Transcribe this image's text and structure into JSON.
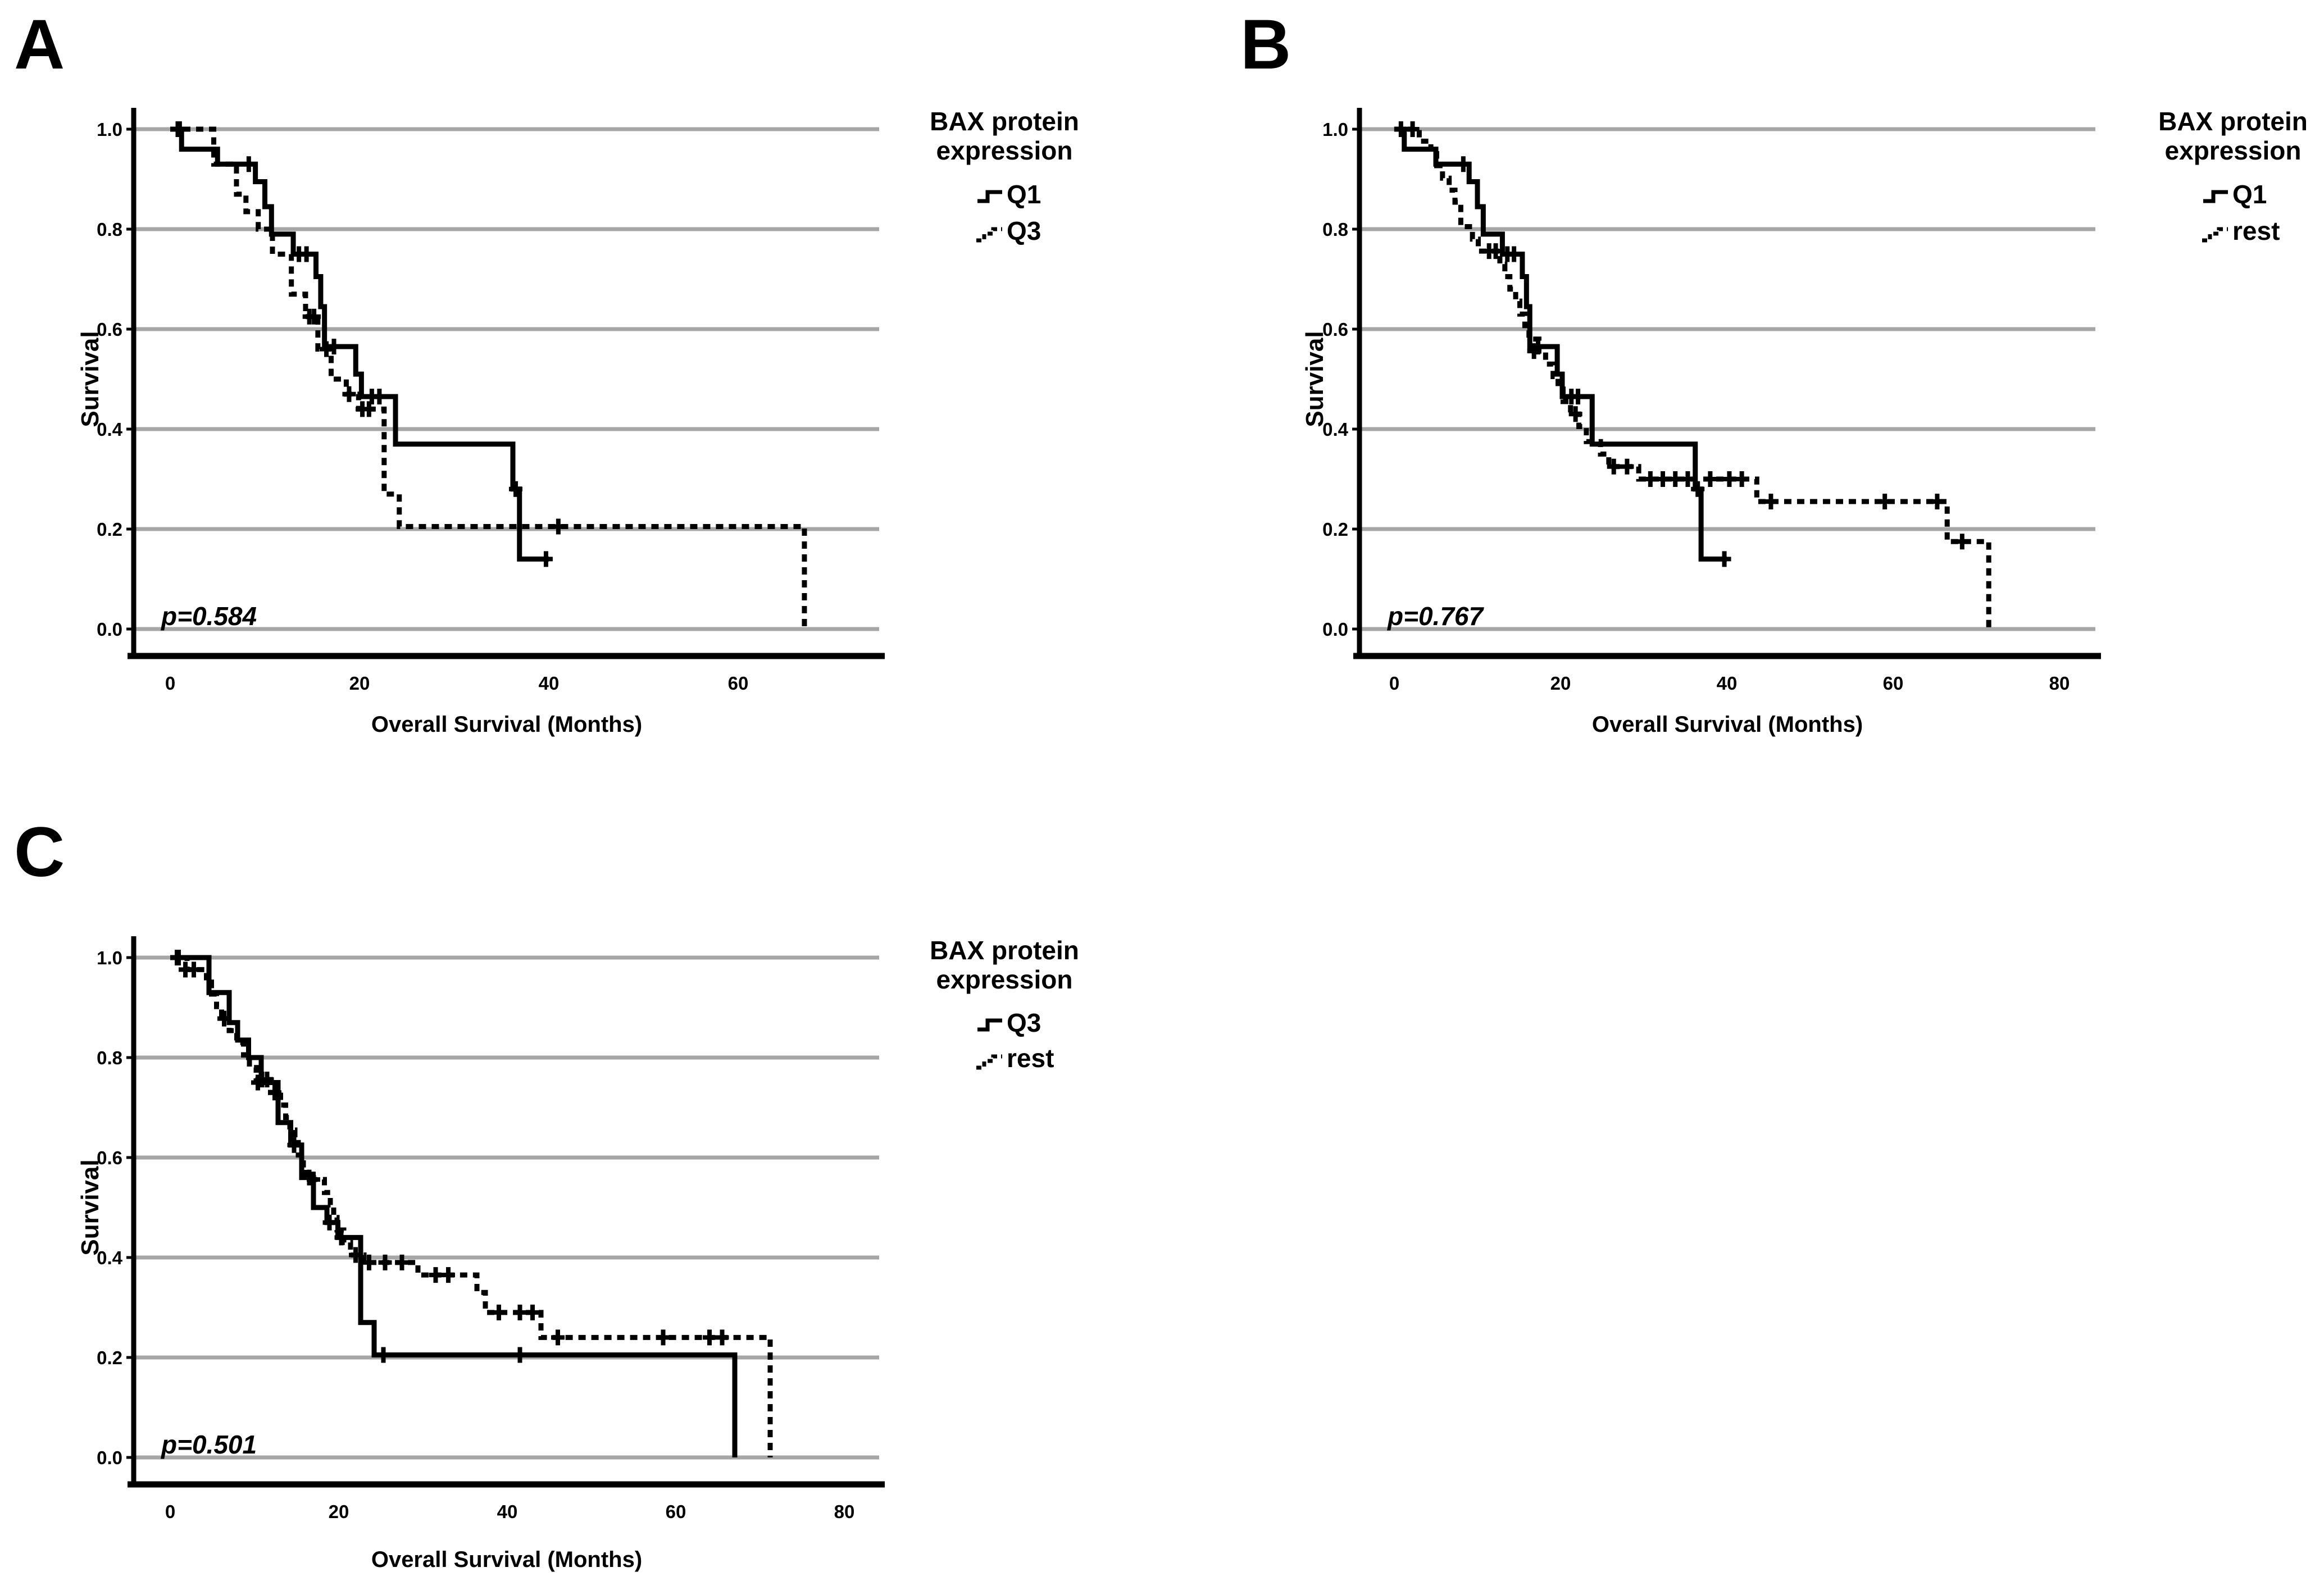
{
  "figure": {
    "background": "#ffffff",
    "curve_color": "#000000",
    "grid_color": "#a6a6a6",
    "description": "Kaplan-Meier overall survival curves by BAX protein expression group"
  },
  "chart_data": [
    {
      "type": "line",
      "panel_label": "A",
      "xlabel": "Overall Survival (Months)",
      "ylabel": "Survival",
      "p_value": "p=0.584",
      "x_ticks": [
        0,
        20,
        40,
        60
      ],
      "y_ticks": [
        "1.0",
        "0.8",
        "0.6",
        "0.4",
        "0.2",
        "0.0"
      ],
      "xlim": [
        0,
        74
      ],
      "ylim": [
        0.0,
        1.0
      ],
      "grid": "horizontal",
      "legend": {
        "title_lines": [
          "BAX protein",
          "expression"
        ],
        "position": "right",
        "items": [
          {
            "label": "Q1",
            "style": "solid"
          },
          {
            "label": "Q3",
            "style": "dashed"
          }
        ]
      },
      "series": [
        {
          "name": "Q1",
          "style": "solid",
          "steps": [
            [
              0,
              1.0
            ],
            [
              1.2,
              0.96
            ],
            [
              5,
              0.93
            ],
            [
              9,
              0.895
            ],
            [
              10,
              0.845
            ],
            [
              10.7,
              0.79
            ],
            [
              13,
              0.75
            ],
            [
              15.4,
              0.705
            ],
            [
              15.9,
              0.645
            ],
            [
              16.3,
              0.565
            ],
            [
              19.6,
              0.51
            ],
            [
              20.2,
              0.465
            ],
            [
              23.8,
              0.37
            ],
            [
              36.2,
              0.28
            ],
            [
              36.9,
              0.14
            ],
            [
              40,
              0.14
            ]
          ],
          "censors": [
            [
              0.8,
              1.0
            ],
            [
              8.3,
              0.93
            ],
            [
              13.6,
              0.75
            ],
            [
              14.4,
              0.75
            ],
            [
              17.3,
              0.565
            ],
            [
              21.3,
              0.465
            ],
            [
              22.1,
              0.465
            ],
            [
              36.5,
              0.28
            ],
            [
              39.7,
              0.14
            ]
          ]
        },
        {
          "name": "Q3",
          "style": "dashed",
          "steps": [
            [
              0,
              1.0
            ],
            [
              4.6,
              0.93
            ],
            [
              7,
              0.87
            ],
            [
              8,
              0.835
            ],
            [
              9.3,
              0.8
            ],
            [
              10.8,
              0.75
            ],
            [
              12.8,
              0.67
            ],
            [
              14.3,
              0.625
            ],
            [
              15.6,
              0.56
            ],
            [
              17,
              0.5
            ],
            [
              18.6,
              0.47
            ],
            [
              19.9,
              0.44
            ],
            [
              22.6,
              0.27
            ],
            [
              24.2,
              0.205
            ],
            [
              67,
              0.0
            ]
          ],
          "censors": [
            [
              1,
              1.0
            ],
            [
              14.7,
              0.625
            ],
            [
              15.2,
              0.625
            ],
            [
              16.5,
              0.56
            ],
            [
              18.9,
              0.47
            ],
            [
              20.3,
              0.44
            ],
            [
              21,
              0.44
            ],
            [
              41,
              0.205
            ]
          ]
        }
      ]
    },
    {
      "type": "line",
      "panel_label": "B",
      "xlabel": "Overall Survival (Months)",
      "ylabel": "Survival",
      "p_value": "p=0.767",
      "x_ticks": [
        0,
        20,
        40,
        60,
        80
      ],
      "y_ticks": [
        "1.0",
        "0.8",
        "0.6",
        "0.4",
        "0.2",
        "0.0"
      ],
      "xlim": [
        0,
        84
      ],
      "ylim": [
        0.0,
        1.0
      ],
      "grid": "horizontal",
      "legend": {
        "title_lines": [
          "BAX protein",
          "expression"
        ],
        "position": "right",
        "items": [
          {
            "label": "Q1",
            "style": "solid"
          },
          {
            "label": "rest",
            "style": "dashed"
          }
        ]
      },
      "series": [
        {
          "name": "Q1",
          "style": "solid",
          "steps": [
            [
              0,
              1.0
            ],
            [
              1.2,
              0.96
            ],
            [
              5,
              0.93
            ],
            [
              9,
              0.895
            ],
            [
              10,
              0.845
            ],
            [
              10.7,
              0.79
            ],
            [
              13,
              0.75
            ],
            [
              15.4,
              0.705
            ],
            [
              15.9,
              0.645
            ],
            [
              16.3,
              0.565
            ],
            [
              19.6,
              0.51
            ],
            [
              20.2,
              0.465
            ],
            [
              23.8,
              0.37
            ],
            [
              36.2,
              0.28
            ],
            [
              36.9,
              0.14
            ],
            [
              40,
              0.14
            ]
          ],
          "censors": [
            [
              0.8,
              1.0
            ],
            [
              8.3,
              0.93
            ],
            [
              13.6,
              0.75
            ],
            [
              14.4,
              0.75
            ],
            [
              17.3,
              0.565
            ],
            [
              21.3,
              0.465
            ],
            [
              22.1,
              0.465
            ],
            [
              36.5,
              0.28
            ],
            [
              39.7,
              0.14
            ]
          ]
        },
        {
          "name": "rest",
          "style": "dashed",
          "steps": [
            [
              0,
              1.0
            ],
            [
              3,
              0.976
            ],
            [
              4.4,
              0.951
            ],
            [
              5.1,
              0.927
            ],
            [
              5.8,
              0.902
            ],
            [
              6.6,
              0.878
            ],
            [
              7.3,
              0.854
            ],
            [
              8,
              0.805
            ],
            [
              9.4,
              0.78
            ],
            [
              10.1,
              0.756
            ],
            [
              12.7,
              0.73
            ],
            [
              13.3,
              0.705
            ],
            [
              13.9,
              0.68
            ],
            [
              14.6,
              0.656
            ],
            [
              15.1,
              0.63
            ],
            [
              15.7,
              0.607
            ],
            [
              16.2,
              0.58
            ],
            [
              17.4,
              0.556
            ],
            [
              18.2,
              0.53
            ],
            [
              19.1,
              0.505
            ],
            [
              19.7,
              0.48
            ],
            [
              20.3,
              0.455
            ],
            [
              21.2,
              0.43
            ],
            [
              22.2,
              0.405
            ],
            [
              23.1,
              0.375
            ],
            [
              24.8,
              0.35
            ],
            [
              25.8,
              0.325
            ],
            [
              29.4,
              0.3
            ],
            [
              43.6,
              0.255
            ],
            [
              66.5,
              0.175
            ],
            [
              71.5,
              0.0
            ]
          ],
          "censors": [
            [
              2.2,
              1.0
            ],
            [
              11.4,
              0.756
            ],
            [
              12.2,
              0.756
            ],
            [
              16.8,
              0.556
            ],
            [
              21.8,
              0.43
            ],
            [
              26.4,
              0.325
            ],
            [
              28,
              0.325
            ],
            [
              30.8,
              0.3
            ],
            [
              32.3,
              0.3
            ],
            [
              33.8,
              0.3
            ],
            [
              35.3,
              0.3
            ],
            [
              38,
              0.3
            ],
            [
              40.3,
              0.3
            ],
            [
              41.8,
              0.3
            ],
            [
              45.3,
              0.255
            ],
            [
              59,
              0.255
            ],
            [
              65.3,
              0.255
            ],
            [
              68.3,
              0.175
            ]
          ]
        }
      ]
    },
    {
      "type": "line",
      "panel_label": "C",
      "xlabel": "Overall Survival (Months)",
      "ylabel": "Survival",
      "p_value": "p=0.501",
      "x_ticks": [
        0,
        20,
        40,
        60,
        80
      ],
      "y_ticks": [
        "1.0",
        "0.8",
        "0.6",
        "0.4",
        "0.2",
        "0.0"
      ],
      "xlim": [
        0,
        84
      ],
      "ylim": [
        0.0,
        1.0
      ],
      "grid": "horizontal",
      "legend": {
        "title_lines": [
          "BAX protein",
          "expression"
        ],
        "position": "right",
        "items": [
          {
            "label": "Q3",
            "style": "solid"
          },
          {
            "label": "rest",
            "style": "dashed"
          }
        ]
      },
      "series": [
        {
          "name": "Q3",
          "style": "solid",
          "steps": [
            [
              0,
              1.0
            ],
            [
              4.6,
              0.93
            ],
            [
              7,
              0.87
            ],
            [
              8,
              0.835
            ],
            [
              9.3,
              0.8
            ],
            [
              10.8,
              0.75
            ],
            [
              12.8,
              0.67
            ],
            [
              14.3,
              0.625
            ],
            [
              15.6,
              0.56
            ],
            [
              17,
              0.5
            ],
            [
              18.6,
              0.47
            ],
            [
              19.9,
              0.44
            ],
            [
              22.6,
              0.27
            ],
            [
              24.2,
              0.205
            ],
            [
              67,
              0.0
            ]
          ],
          "censors": [
            [
              1,
              1.0
            ],
            [
              10.4,
              0.75
            ],
            [
              14.7,
              0.625
            ],
            [
              16.5,
              0.56
            ],
            [
              18.9,
              0.47
            ],
            [
              20.3,
              0.44
            ],
            [
              25.3,
              0.205
            ],
            [
              41.5,
              0.205
            ]
          ]
        },
        {
          "name": "rest",
          "style": "dashed",
          "steps": [
            [
              0,
              1.0
            ],
            [
              2,
              0.976
            ],
            [
              4.3,
              0.951
            ],
            [
              4.9,
              0.927
            ],
            [
              5.5,
              0.902
            ],
            [
              6.1,
              0.878
            ],
            [
              7,
              0.854
            ],
            [
              7.9,
              0.83
            ],
            [
              8.7,
              0.805
            ],
            [
              9.4,
              0.78
            ],
            [
              10.2,
              0.756
            ],
            [
              11.9,
              0.73
            ],
            [
              13.1,
              0.705
            ],
            [
              13.7,
              0.68
            ],
            [
              14.2,
              0.655
            ],
            [
              14.8,
              0.63
            ],
            [
              15.2,
              0.605
            ],
            [
              15.8,
              0.58
            ],
            [
              16.2,
              0.556
            ],
            [
              18.3,
              0.53
            ],
            [
              19,
              0.505
            ],
            [
              19.4,
              0.48
            ],
            [
              19.8,
              0.455
            ],
            [
              20.6,
              0.43
            ],
            [
              21.4,
              0.405
            ],
            [
              23,
              0.39
            ],
            [
              29.4,
              0.365
            ],
            [
              36.4,
              0.33
            ],
            [
              37.4,
              0.29
            ],
            [
              44,
              0.24
            ],
            [
              71.2,
              0.0
            ]
          ],
          "censors": [
            [
              0.8,
              1.0
            ],
            [
              1.8,
              0.976
            ],
            [
              2.8,
              0.976
            ],
            [
              6.4,
              0.878
            ],
            [
              10.9,
              0.756
            ],
            [
              11.5,
              0.756
            ],
            [
              12.4,
              0.73
            ],
            [
              17,
              0.556
            ],
            [
              22,
              0.405
            ],
            [
              23.6,
              0.39
            ],
            [
              25.5,
              0.39
            ],
            [
              27.5,
              0.39
            ],
            [
              31.5,
              0.365
            ],
            [
              33,
              0.365
            ],
            [
              39,
              0.29
            ],
            [
              41.5,
              0.29
            ],
            [
              43,
              0.29
            ],
            [
              46,
              0.24
            ],
            [
              58.5,
              0.24
            ],
            [
              64,
              0.24
            ],
            [
              65.5,
              0.24
            ]
          ]
        }
      ]
    }
  ]
}
